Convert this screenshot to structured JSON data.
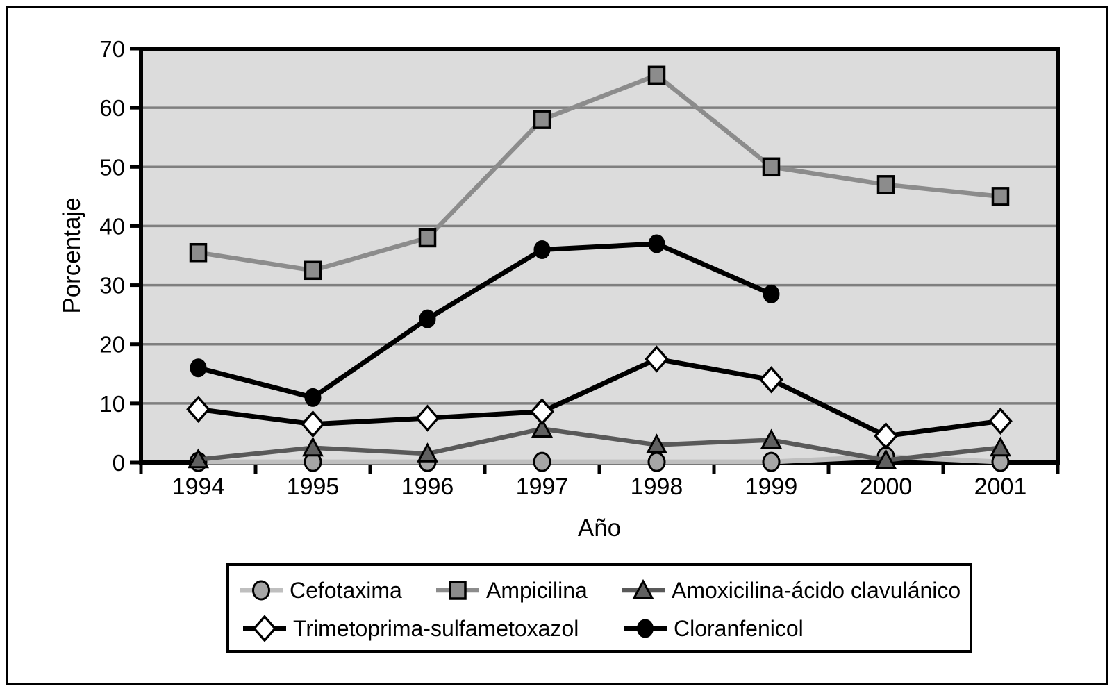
{
  "figure": {
    "background": "#ffffff",
    "border_color": "#000000",
    "plot_background": "#dcdcdc",
    "gridline_color": "#7f7f7f",
    "axis_color": "#000000"
  },
  "chart_data": {
    "type": "line",
    "title": "",
    "xlabel": "Año",
    "ylabel": "Porcentaje",
    "x_categories": [
      "1994",
      "1995",
      "1996",
      "1997",
      "1998",
      "1999",
      "2000",
      "2001"
    ],
    "y_ticks": [
      0,
      10,
      20,
      30,
      40,
      50,
      60,
      70
    ],
    "ylim": [
      0,
      70
    ],
    "grid": true,
    "legend_position": "bottom-box",
    "series": [
      {
        "name": "Cefotaxima",
        "marker": "circle",
        "line_color": "#bfbfbf",
        "marker_fill": "#a6a6a6",
        "line_width": 7,
        "values": [
          0.1,
          0.1,
          0.1,
          0.1,
          0.1,
          0.1,
          1,
          0.1
        ]
      },
      {
        "name": "Ampicilina",
        "marker": "square",
        "line_color": "#8c8c8c",
        "marker_fill": "#8c8c8c",
        "line_width": 6.5,
        "values": [
          35.5,
          32.5,
          38,
          58,
          65.5,
          50,
          47,
          45
        ]
      },
      {
        "name": "Amoxicilina-ácido clavulánico",
        "marker": "triangle",
        "line_color": "#595959",
        "marker_fill": "#606060",
        "line_width": 6.5,
        "values": [
          0.5,
          2.5,
          1.5,
          5.7,
          3,
          3.8,
          0.4,
          2.5
        ]
      },
      {
        "name": "Trimetoprima-sulfametoxazol",
        "marker": "diamond",
        "line_color": "#000000",
        "marker_fill": "#ffffff",
        "line_width": 7,
        "values": [
          9,
          6.5,
          7.5,
          8.6,
          17.5,
          14,
          4.5,
          7
        ]
      },
      {
        "name": "Cloranfenicol",
        "marker": "circle-filled",
        "line_color": "#000000",
        "marker_fill": "#000000",
        "line_width": 7,
        "values": [
          16,
          11,
          24.3,
          36,
          37,
          28.5,
          null,
          null
        ]
      }
    ],
    "legend_rows": [
      [
        0,
        1,
        2
      ],
      [
        3,
        4
      ]
    ]
  }
}
